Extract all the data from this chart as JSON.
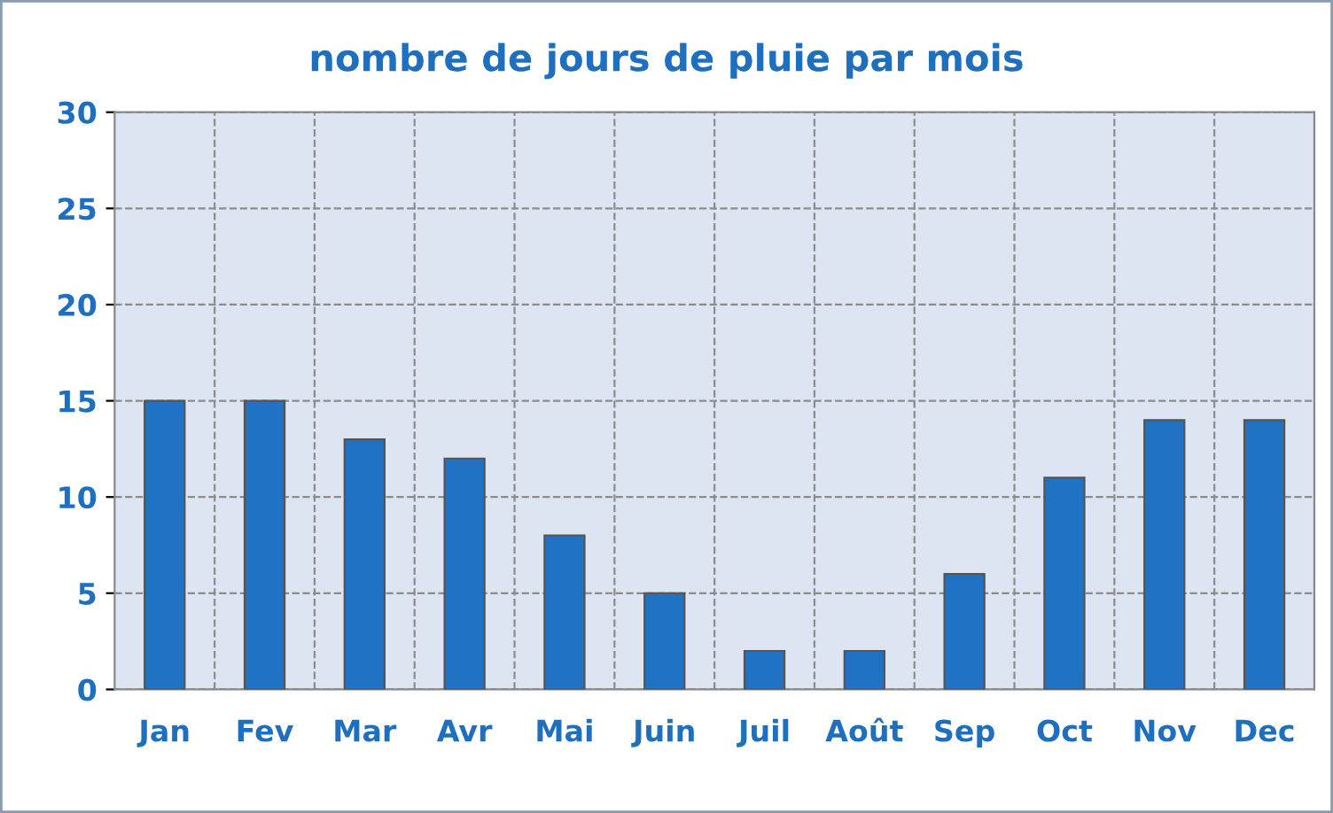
{
  "chart_data": {
    "type": "bar",
    "title": "nombre de jours de pluie par mois",
    "categories": [
      "Jan",
      "Fev",
      "Mar",
      "Avr",
      "Mai",
      "Juin",
      "Juil",
      "Août",
      "Sep",
      "Oct",
      "Nov",
      "Dec"
    ],
    "values": [
      15,
      15,
      13,
      12,
      8,
      5,
      2,
      2,
      6,
      11,
      14,
      14
    ],
    "color": "#1f72c4",
    "ylim": [
      0,
      30
    ],
    "yticks": [
      0,
      5,
      10,
      15,
      20,
      25,
      30
    ],
    "grid": true
  }
}
